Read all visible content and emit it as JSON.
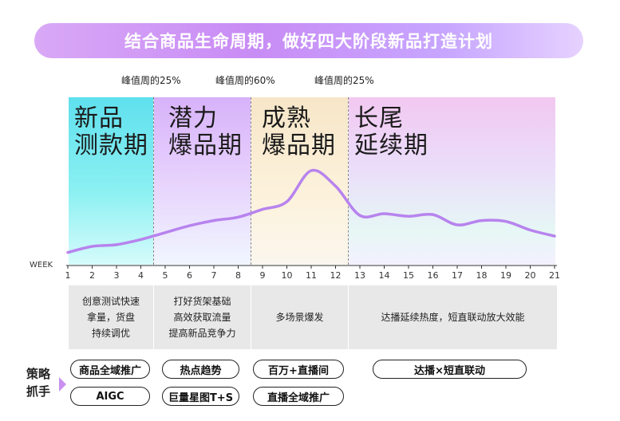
{
  "header": {
    "title": "结合商品生命周期，做好四大阶段新品打造计划"
  },
  "peaks": [
    "峰值周的25%",
    "峰值周的60%",
    "峰值周的25%"
  ],
  "phases": [
    {
      "title": "新品\n测款期",
      "color": "#5fe0ee"
    },
    {
      "title": "潜力\n爆品期",
      "color": "#d7b2fa"
    },
    {
      "title": "成熟\n爆品期",
      "color": "#f7e6c8"
    },
    {
      "title": "长尾\n延续期",
      "color": "#f2c8f0"
    }
  ],
  "axis": {
    "label": "WEEK",
    "ticks": [
      "1",
      "2",
      "3",
      "4",
      "5",
      "6",
      "7",
      "8",
      "9",
      "10",
      "11",
      "12",
      "13",
      "14",
      "15",
      "16",
      "17",
      "18",
      "19",
      "20",
      "21"
    ]
  },
  "descriptions": [
    "创意测试快速\n拿量，货盘\n持续调优",
    "打好货架基础\n高效获取流量\n提高新品竞争力",
    "多场景爆发",
    "达播延续热度，短直联动放大效能"
  ],
  "strategy": {
    "label": "策略\n抓手",
    "pills": [
      "商品全域推广",
      "热点趋势",
      "百万+直播间",
      "达播×短直联动",
      "AIGC",
      "巨量星图T+S",
      "直播全域推广"
    ]
  },
  "curve": {
    "color": "#b783ee",
    "values": [
      0.05,
      0.12,
      0.14,
      0.2,
      0.28,
      0.36,
      0.42,
      0.46,
      0.55,
      0.64,
      1.0,
      0.82,
      0.48,
      0.5,
      0.47,
      0.49,
      0.37,
      0.42,
      0.41,
      0.31,
      0.24
    ]
  }
}
